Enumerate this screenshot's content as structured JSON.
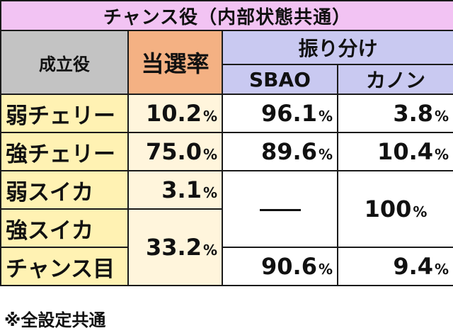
{
  "title": "チャンス役（内部状態共通）",
  "header": {
    "role": "成立役",
    "rate": "当選率",
    "distribution": "振り分け",
    "sbao": "SBAO",
    "kanon": "カノン"
  },
  "pct_unit": "%",
  "rows": [
    {
      "name": "弱チェリー",
      "rate": "10.2",
      "sbao": "96.1",
      "kanon": "3.8"
    },
    {
      "name": "強チェリー",
      "rate": "75.0",
      "sbao": "89.6",
      "kanon": "10.4"
    },
    {
      "name": "弱スイカ",
      "rate": "3.1",
      "sbao": "",
      "kanon": "100"
    },
    {
      "name": "強スイカ",
      "rate": "33.2",
      "sbao": "",
      "kanon": ""
    },
    {
      "name": "チャンス目",
      "rate": "",
      "sbao": "90.6",
      "kanon": "9.4"
    }
  ],
  "footnote": "※全設定共通",
  "colors": {
    "title_bg": "#f2c3f3",
    "role_header_bg": "#c3c3c3",
    "rate_header_bg": "#f4b183",
    "dist_header_bg": "#c9c9f1",
    "row_name_bg": "#fff2b3",
    "rate_cell_bg": "#fff5dc"
  }
}
